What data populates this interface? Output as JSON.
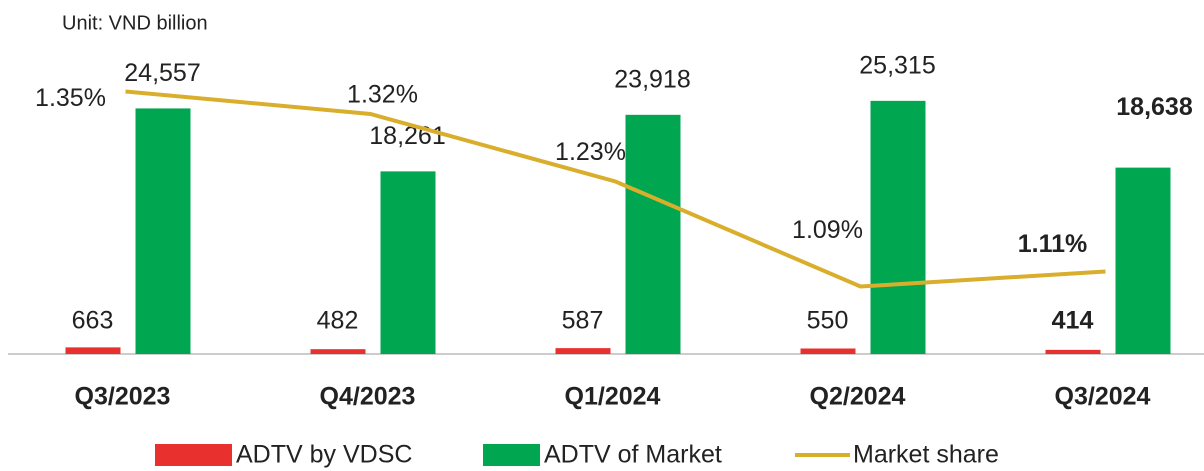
{
  "chart_data": {
    "type": "bar",
    "subtitle": "Unit: VND billion",
    "categories": [
      "Q3/2023",
      "Q4/2023",
      "Q1/2024",
      "Q2/2024",
      "Q3/2024"
    ],
    "series": [
      {
        "name": "ADTV by VDSC",
        "color": "#e8312f",
        "values": [
          663,
          482,
          587,
          550,
          414
        ]
      },
      {
        "name": "ADTV of Market",
        "color": "#00a650",
        "values": [
          24557,
          18261,
          23918,
          25315,
          18638
        ],
        "value_labels": [
          "24,557",
          "18,261",
          "23,918",
          "25,315",
          "18,638"
        ]
      },
      {
        "name": "Market share",
        "type": "line",
        "axis": "y2",
        "color": "#d9ae2c",
        "values": [
          1.35,
          1.32,
          1.23,
          1.09,
          1.11
        ],
        "value_labels": [
          "1.35%",
          "1.32%",
          "1.23%",
          "1.09%",
          "1.11%"
        ]
      }
    ],
    "ylim": [
      0,
      30000
    ],
    "y2lim": [
      1.0,
      1.4
    ],
    "legend": "bottom"
  }
}
